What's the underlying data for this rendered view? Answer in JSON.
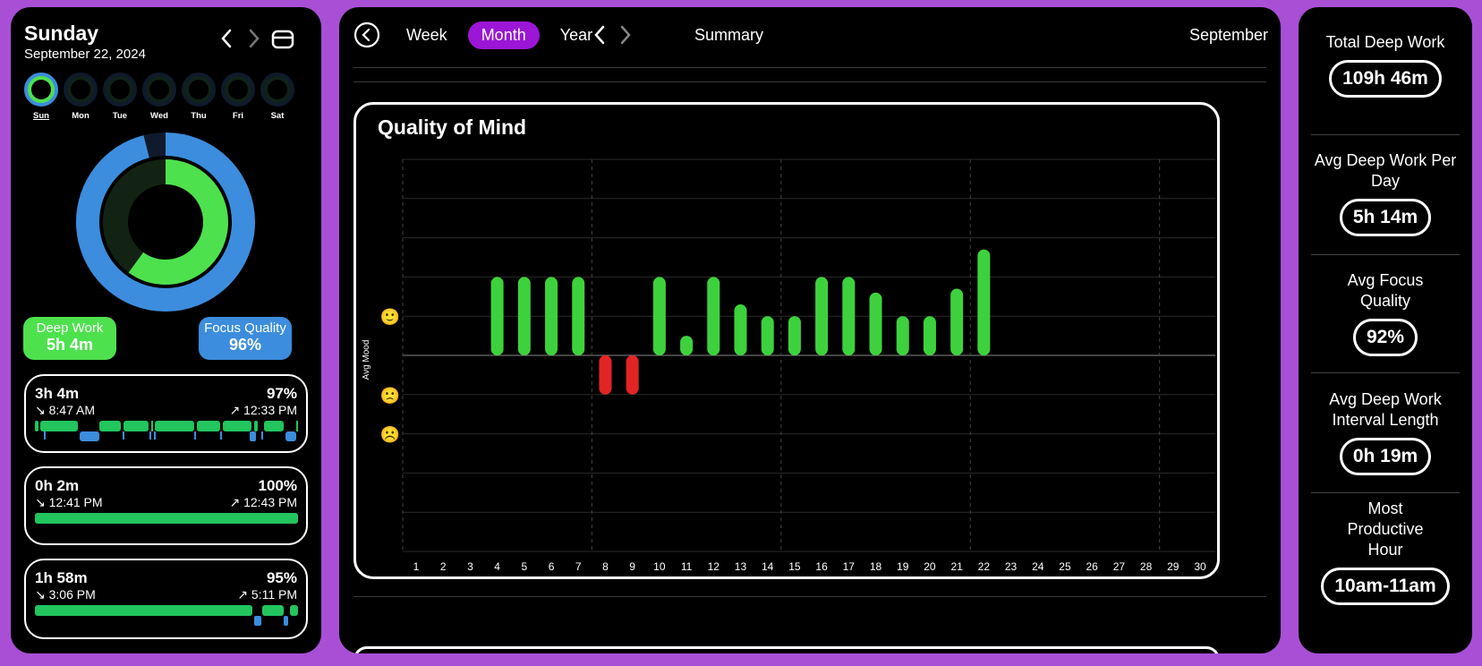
{
  "header": {
    "day_name": "Sunday",
    "date": "September 22, 2024"
  },
  "week": {
    "days": [
      "Sun",
      "Mon",
      "Tue",
      "Wed",
      "Thu",
      "Fri",
      "Sat"
    ],
    "active_index": 0
  },
  "day_donut": {
    "outer_fill_fraction": 0.96,
    "inner_fill_fraction": 0.6,
    "outer_color": "#3c8ddd",
    "inner_color": "#4ee14e"
  },
  "pills": {
    "deep_work_label": "Deep Work",
    "deep_work_value": "5h 4m",
    "focus_label": "Focus Quality",
    "focus_value": "96%"
  },
  "sessions": [
    {
      "duration": "3h 4m",
      "quality": "97%",
      "start": "↘ 8:47 AM",
      "end": "↗ 12:33 PM"
    },
    {
      "duration": "0h 2m",
      "quality": "100%",
      "start": "↘ 12:41 PM",
      "end": "↗ 12:43 PM"
    },
    {
      "duration": "1h 58m",
      "quality": "95%",
      "start": "↘ 3:06 PM",
      "end": "↗ 5:11 PM"
    }
  ],
  "nav": {
    "tabs": [
      "Week",
      "Month",
      "Year"
    ],
    "active_tab": "Month",
    "summary_label": "Summary",
    "month_label": "September"
  },
  "colors": {
    "accent": "#9b16d6",
    "positive_bar": "#3dd23d",
    "negative_bar": "#e32424",
    "focus_blue": "#3c8ddd",
    "deep_green": "#4ee14e"
  },
  "chart_data": {
    "type": "bar",
    "title": "Quality of Mind",
    "ylabel": "Avg Mood",
    "ylim": [
      -5,
      5
    ],
    "y_tick_icons": [
      "😝",
      "😁",
      "😀",
      "😊",
      "🙂",
      "😐",
      "🙁",
      "☹️",
      "😞",
      "😣",
      "😖"
    ],
    "categories": [
      "1",
      "2",
      "3",
      "4",
      "5",
      "6",
      "7",
      "8",
      "9",
      "10",
      "11",
      "12",
      "13",
      "14",
      "15",
      "16",
      "17",
      "18",
      "19",
      "20",
      "21",
      "22",
      "23",
      "24",
      "25",
      "26",
      "27",
      "28",
      "29",
      "30"
    ],
    "values": [
      null,
      null,
      null,
      2,
      2,
      2,
      2,
      -1,
      -1,
      2,
      0.5,
      2,
      1.3,
      1,
      1,
      2,
      2,
      1.6,
      1,
      1,
      1.7,
      2.7,
      null,
      null,
      null,
      null,
      null,
      null,
      null,
      null
    ]
  },
  "summary_stats": [
    {
      "label": "Total Deep Work",
      "value": "109h 46m"
    },
    {
      "label": "Avg Deep Work Per Day",
      "value": "5h 14m"
    },
    {
      "label": "Avg Focus Quality",
      "value": "92%"
    },
    {
      "label": "Avg Deep Work Interval Length",
      "value": "0h 19m"
    },
    {
      "label": "Most Productive Hour",
      "value": "10am-11am"
    }
  ]
}
